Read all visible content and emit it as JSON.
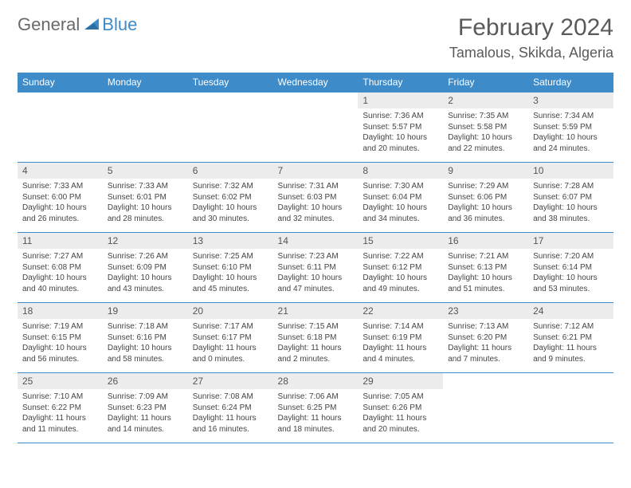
{
  "logo": {
    "general": "General",
    "blue": "Blue"
  },
  "title": {
    "month": "February 2024",
    "location": "Tamalous, Skikda, Algeria"
  },
  "colors": {
    "accent": "#3d8bc9",
    "light_row": "#ececec",
    "text": "#555555"
  },
  "dow": [
    "Sunday",
    "Monday",
    "Tuesday",
    "Wednesday",
    "Thursday",
    "Friday",
    "Saturday"
  ],
  "weeks": [
    [
      null,
      null,
      null,
      null,
      {
        "n": "1",
        "sr": "Sunrise: 7:36 AM",
        "ss": "Sunset: 5:57 PM",
        "d1": "Daylight: 10 hours",
        "d2": "and 20 minutes."
      },
      {
        "n": "2",
        "sr": "Sunrise: 7:35 AM",
        "ss": "Sunset: 5:58 PM",
        "d1": "Daylight: 10 hours",
        "d2": "and 22 minutes."
      },
      {
        "n": "3",
        "sr": "Sunrise: 7:34 AM",
        "ss": "Sunset: 5:59 PM",
        "d1": "Daylight: 10 hours",
        "d2": "and 24 minutes."
      }
    ],
    [
      {
        "n": "4",
        "sr": "Sunrise: 7:33 AM",
        "ss": "Sunset: 6:00 PM",
        "d1": "Daylight: 10 hours",
        "d2": "and 26 minutes."
      },
      {
        "n": "5",
        "sr": "Sunrise: 7:33 AM",
        "ss": "Sunset: 6:01 PM",
        "d1": "Daylight: 10 hours",
        "d2": "and 28 minutes."
      },
      {
        "n": "6",
        "sr": "Sunrise: 7:32 AM",
        "ss": "Sunset: 6:02 PM",
        "d1": "Daylight: 10 hours",
        "d2": "and 30 minutes."
      },
      {
        "n": "7",
        "sr": "Sunrise: 7:31 AM",
        "ss": "Sunset: 6:03 PM",
        "d1": "Daylight: 10 hours",
        "d2": "and 32 minutes."
      },
      {
        "n": "8",
        "sr": "Sunrise: 7:30 AM",
        "ss": "Sunset: 6:04 PM",
        "d1": "Daylight: 10 hours",
        "d2": "and 34 minutes."
      },
      {
        "n": "9",
        "sr": "Sunrise: 7:29 AM",
        "ss": "Sunset: 6:06 PM",
        "d1": "Daylight: 10 hours",
        "d2": "and 36 minutes."
      },
      {
        "n": "10",
        "sr": "Sunrise: 7:28 AM",
        "ss": "Sunset: 6:07 PM",
        "d1": "Daylight: 10 hours",
        "d2": "and 38 minutes."
      }
    ],
    [
      {
        "n": "11",
        "sr": "Sunrise: 7:27 AM",
        "ss": "Sunset: 6:08 PM",
        "d1": "Daylight: 10 hours",
        "d2": "and 40 minutes."
      },
      {
        "n": "12",
        "sr": "Sunrise: 7:26 AM",
        "ss": "Sunset: 6:09 PM",
        "d1": "Daylight: 10 hours",
        "d2": "and 43 minutes."
      },
      {
        "n": "13",
        "sr": "Sunrise: 7:25 AM",
        "ss": "Sunset: 6:10 PM",
        "d1": "Daylight: 10 hours",
        "d2": "and 45 minutes."
      },
      {
        "n": "14",
        "sr": "Sunrise: 7:23 AM",
        "ss": "Sunset: 6:11 PM",
        "d1": "Daylight: 10 hours",
        "d2": "and 47 minutes."
      },
      {
        "n": "15",
        "sr": "Sunrise: 7:22 AM",
        "ss": "Sunset: 6:12 PM",
        "d1": "Daylight: 10 hours",
        "d2": "and 49 minutes."
      },
      {
        "n": "16",
        "sr": "Sunrise: 7:21 AM",
        "ss": "Sunset: 6:13 PM",
        "d1": "Daylight: 10 hours",
        "d2": "and 51 minutes."
      },
      {
        "n": "17",
        "sr": "Sunrise: 7:20 AM",
        "ss": "Sunset: 6:14 PM",
        "d1": "Daylight: 10 hours",
        "d2": "and 53 minutes."
      }
    ],
    [
      {
        "n": "18",
        "sr": "Sunrise: 7:19 AM",
        "ss": "Sunset: 6:15 PM",
        "d1": "Daylight: 10 hours",
        "d2": "and 56 minutes."
      },
      {
        "n": "19",
        "sr": "Sunrise: 7:18 AM",
        "ss": "Sunset: 6:16 PM",
        "d1": "Daylight: 10 hours",
        "d2": "and 58 minutes."
      },
      {
        "n": "20",
        "sr": "Sunrise: 7:17 AM",
        "ss": "Sunset: 6:17 PM",
        "d1": "Daylight: 11 hours",
        "d2": "and 0 minutes."
      },
      {
        "n": "21",
        "sr": "Sunrise: 7:15 AM",
        "ss": "Sunset: 6:18 PM",
        "d1": "Daylight: 11 hours",
        "d2": "and 2 minutes."
      },
      {
        "n": "22",
        "sr": "Sunrise: 7:14 AM",
        "ss": "Sunset: 6:19 PM",
        "d1": "Daylight: 11 hours",
        "d2": "and 4 minutes."
      },
      {
        "n": "23",
        "sr": "Sunrise: 7:13 AM",
        "ss": "Sunset: 6:20 PM",
        "d1": "Daylight: 11 hours",
        "d2": "and 7 minutes."
      },
      {
        "n": "24",
        "sr": "Sunrise: 7:12 AM",
        "ss": "Sunset: 6:21 PM",
        "d1": "Daylight: 11 hours",
        "d2": "and 9 minutes."
      }
    ],
    [
      {
        "n": "25",
        "sr": "Sunrise: 7:10 AM",
        "ss": "Sunset: 6:22 PM",
        "d1": "Daylight: 11 hours",
        "d2": "and 11 minutes."
      },
      {
        "n": "26",
        "sr": "Sunrise: 7:09 AM",
        "ss": "Sunset: 6:23 PM",
        "d1": "Daylight: 11 hours",
        "d2": "and 14 minutes."
      },
      {
        "n": "27",
        "sr": "Sunrise: 7:08 AM",
        "ss": "Sunset: 6:24 PM",
        "d1": "Daylight: 11 hours",
        "d2": "and 16 minutes."
      },
      {
        "n": "28",
        "sr": "Sunrise: 7:06 AM",
        "ss": "Sunset: 6:25 PM",
        "d1": "Daylight: 11 hours",
        "d2": "and 18 minutes."
      },
      {
        "n": "29",
        "sr": "Sunrise: 7:05 AM",
        "ss": "Sunset: 6:26 PM",
        "d1": "Daylight: 11 hours",
        "d2": "and 20 minutes."
      },
      null,
      null
    ]
  ]
}
